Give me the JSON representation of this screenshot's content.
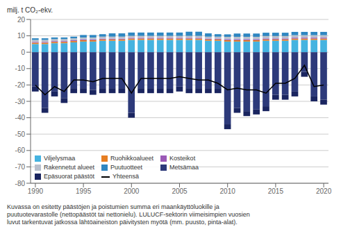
{
  "chart_data": {
    "type": "bar",
    "stacked": true,
    "grid": true,
    "legend": "lower left",
    "ylabel": "milj. t CO₂-ekv.",
    "x": [
      1990,
      1991,
      1992,
      1993,
      1994,
      1995,
      1996,
      1997,
      1998,
      1999,
      2000,
      2001,
      2002,
      2003,
      2004,
      2005,
      2006,
      2007,
      2008,
      2009,
      2010,
      2011,
      2012,
      2013,
      2014,
      2015,
      2016,
      2017,
      2018,
      2019,
      2020
    ],
    "xlim": [
      1989.5,
      2020.5
    ],
    "xticks": [
      1990,
      1995,
      2000,
      2005,
      2010,
      2015,
      2020
    ],
    "ylim": [
      -80,
      20
    ],
    "yticks": [
      -80,
      -70,
      -60,
      -50,
      -40,
      -30,
      -20,
      -10,
      0,
      10,
      20
    ],
    "series": [
      {
        "name": "Viljelysmaa",
        "color": "#45b3e0",
        "values": [
          5.0,
          5.0,
          5.5,
          5.5,
          6.0,
          6.5,
          6.5,
          7.0,
          7.0,
          7.0,
          7.5,
          7.5,
          7.5,
          7.5,
          7.5,
          7.5,
          7.5,
          7.5,
          7.0,
          7.0,
          6.5,
          6.5,
          6.5,
          6.5,
          7.0,
          7.0,
          7.0,
          7.5,
          7.5,
          7.5,
          7.5
        ]
      },
      {
        "name": "Ruohikkoalueet",
        "color": "#e67e22",
        "values": [
          0.8,
          0.8,
          0.8,
          0.8,
          0.8,
          0.8,
          0.8,
          0.8,
          0.8,
          0.8,
          0.8,
          0.8,
          0.8,
          0.8,
          0.8,
          0.8,
          0.8,
          0.8,
          0.8,
          0.8,
          0.8,
          0.8,
          0.8,
          0.8,
          0.8,
          0.8,
          0.8,
          0.8,
          0.8,
          0.8,
          0.8
        ]
      },
      {
        "name": "Kosteikot",
        "color": "#9b59b6",
        "values": [
          0.5,
          0.5,
          0.5,
          0.5,
          0.5,
          0.5,
          0.5,
          0.5,
          0.5,
          0.5,
          0.5,
          0.5,
          0.5,
          0.5,
          0.5,
          0.5,
          0.5,
          0.5,
          0.5,
          0.5,
          0.6,
          0.6,
          0.6,
          0.6,
          0.6,
          0.6,
          0.6,
          0.6,
          0.6,
          0.6,
          0.6
        ]
      },
      {
        "name": "Rakennetut alueet",
        "color": "#b8bfcc",
        "values": [
          1.2,
          1.2,
          1.2,
          1.2,
          1.2,
          1.2,
          1.2,
          1.2,
          1.2,
          1.2,
          1.2,
          1.2,
          1.2,
          1.2,
          1.2,
          1.2,
          1.2,
          1.2,
          1.2,
          1.2,
          1.5,
          1.5,
          1.5,
          1.5,
          1.5,
          1.5,
          1.5,
          1.5,
          1.5,
          1.5,
          1.5
        ]
      },
      {
        "name": "Puutuotteet",
        "color": "#2e86c1",
        "values": [
          1.0,
          1.0,
          1.0,
          1.0,
          1.0,
          1.5,
          1.5,
          1.5,
          2.0,
          2.0,
          2.0,
          2.0,
          2.0,
          2.0,
          2.0,
          2.0,
          2.5,
          2.5,
          2.0,
          1.5,
          1.5,
          2.0,
          2.0,
          2.0,
          2.0,
          2.0,
          2.0,
          2.0,
          2.0,
          2.0,
          2.0
        ]
      },
      {
        "name": "Metsämaa",
        "color": "#2d3a7a",
        "values": [
          -21,
          -34,
          -24,
          -28,
          -22,
          -22,
          -23,
          -22,
          -22,
          -22,
          -37,
          -22,
          -22,
          -22,
          -22,
          -21,
          -22,
          -22,
          -22,
          -22,
          -44,
          -34,
          -36,
          -35,
          -33,
          -26,
          -26,
          -24,
          -12,
          -27,
          -29
        ]
      },
      {
        "name": "Epäsuorat päästöt",
        "color": "#1a2560",
        "values": [
          -3.0,
          -3.0,
          -3.0,
          -3.0,
          -3.0,
          -3.0,
          -3.0,
          -3.0,
          -3.0,
          -3.0,
          -3.0,
          -3.0,
          -3.0,
          -3.0,
          -3.0,
          -3.0,
          -3.0,
          -3.0,
          -3.0,
          -3.0,
          -3.0,
          -3.0,
          -3.0,
          -3.0,
          -3.0,
          -3.0,
          -3.0,
          -3.0,
          -3.0,
          -3.0,
          -3.0
        ]
      },
      {
        "name": "Yhteensä",
        "type": "line",
        "color": "#000000",
        "values": [
          -20,
          -26,
          -21,
          -24,
          -17,
          -17,
          -18,
          -16,
          -16,
          -16,
          -25,
          -16,
          -16,
          -16,
          -16,
          -15,
          -16,
          -17,
          -17,
          -19,
          -23,
          -22,
          -23,
          -23,
          -25,
          -19,
          -19,
          -16,
          -8,
          -21,
          -20
        ]
      }
    ],
    "annotations": [
      "Kuvassa on esitetty päästöjen ja poistumien summa eri maankäyttöluokille ja",
      "puutuotevarastolle (nettopäästöt tai nettonielu). LULUCF-sektorin viimeisimpien vuosien",
      "luvut tarkentuvat jatkossa lähtöaineiston päivitysten myötä (mm. puusto, pinta-alat)."
    ]
  }
}
